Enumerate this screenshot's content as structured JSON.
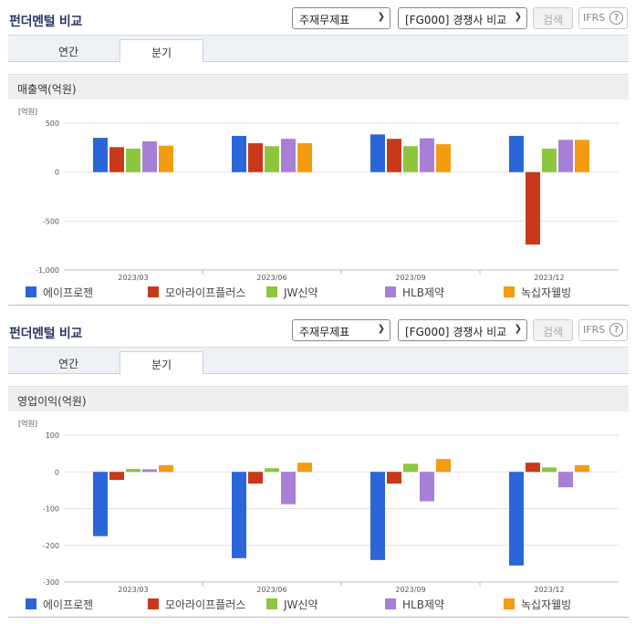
{
  "panels": [
    {
      "header": {
        "title": "펀더멘털 비교",
        "select_statement": "주재무제표",
        "select_compare": "[FG000] 경쟁사 비교",
        "search_label": "검색",
        "ifrs_label": "IFRS",
        "help_glyph": "?"
      },
      "tabs": [
        {
          "label": "연간"
        },
        {
          "label": "분기"
        }
      ],
      "chart_title": "매출액(억원)"
    },
    {
      "header": {
        "title": "펀더멘털 비교",
        "select_statement": "주재무제표",
        "select_compare": "[FG000] 경쟁사 비교",
        "search_label": "검색",
        "ifrs_label": "IFRS",
        "help_glyph": "?"
      },
      "tabs": [
        {
          "label": "연간"
        },
        {
          "label": "분기"
        }
      ],
      "chart_title": "영업이익(억원)"
    }
  ],
  "colors": {
    "series": [
      "#2a66d8",
      "#c8391b",
      "#8cc63f",
      "#a87fd6",
      "#f39c12"
    ],
    "grid": "#e2e2e2",
    "active_tab_bg": "#ffffff"
  },
  "chart_data": [
    {
      "type": "bar",
      "title": "매출액(억원)",
      "unit_label": "[억원]",
      "categories": [
        "2023/03",
        "2023/06",
        "2023/09",
        "2023/12"
      ],
      "ylim": [
        -1000,
        500
      ],
      "yticks": [
        500,
        0,
        -500,
        -1000
      ],
      "ytick_labels": [
        "500",
        "0",
        "-500",
        "-1,000"
      ],
      "grid": true,
      "legend_position": "bottom",
      "series": [
        {
          "name": "에이프로젠",
          "values": [
            350,
            370,
            385,
            370
          ]
        },
        {
          "name": "모아라이프플러스",
          "values": [
            255,
            295,
            340,
            -740
          ]
        },
        {
          "name": "JW신약",
          "values": [
            240,
            265,
            265,
            240
          ]
        },
        {
          "name": "HLB제약",
          "values": [
            315,
            340,
            345,
            330
          ]
        },
        {
          "name": "녹십자웰빙",
          "values": [
            270,
            295,
            285,
            330
          ]
        }
      ]
    },
    {
      "type": "bar",
      "title": "영업이익(억원)",
      "unit_label": "[억원]",
      "categories": [
        "2023/03",
        "2023/06",
        "2023/09",
        "2023/12"
      ],
      "ylim": [
        -300,
        100
      ],
      "yticks": [
        100,
        0,
        -100,
        -200,
        -300
      ],
      "ytick_labels": [
        "100",
        "0",
        "-100",
        "-200",
        "-300"
      ],
      "grid": true,
      "legend_position": "bottom",
      "series": [
        {
          "name": "에이프로젠",
          "values": [
            -175,
            -235,
            -240,
            -255
          ]
        },
        {
          "name": "모아라이프플러스",
          "values": [
            -22,
            -32,
            -32,
            25
          ]
        },
        {
          "name": "JW신약",
          "values": [
            8,
            10,
            22,
            12
          ]
        },
        {
          "name": "HLB제약",
          "values": [
            7,
            -88,
            -80,
            -42
          ]
        },
        {
          "name": "녹십자웰빙",
          "values": [
            18,
            25,
            35,
            18
          ]
        }
      ]
    }
  ]
}
